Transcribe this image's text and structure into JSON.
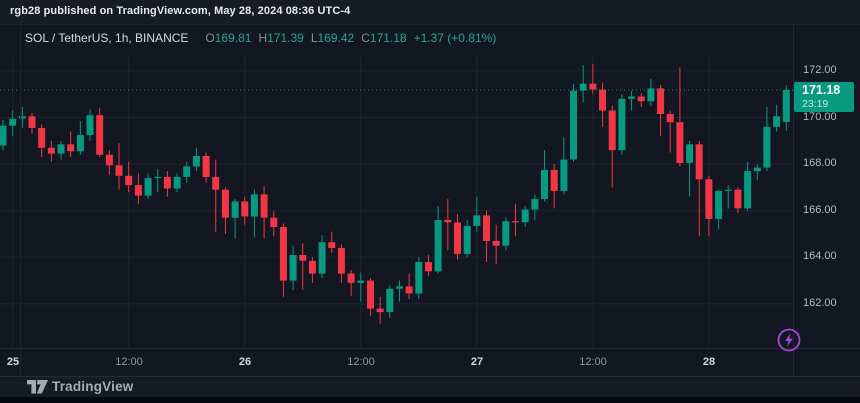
{
  "page": {
    "title": "rgb28 published on TradingView.com, May 28, 2024 08:36 UTC-4",
    "footer_logo_text": "TradingView"
  },
  "legend": {
    "symbol": "SOL / TetherUS, 1h, BINANCE",
    "ohlc": [
      {
        "label": "O",
        "value": "169.81"
      },
      {
        "label": "H",
        "value": "171.39"
      },
      {
        "label": "L",
        "value": "169.42"
      },
      {
        "label": "C",
        "value": "171.18"
      }
    ],
    "change": "+1.37 (+0.81%)"
  },
  "price_scale": {
    "current_price": "171.18",
    "current_price_value": 171.18,
    "countdown": "23:19",
    "labels": [
      {
        "text": "172.00",
        "price": 172
      },
      {
        "text": "170.00",
        "price": 170
      },
      {
        "text": "168.00",
        "price": 168
      },
      {
        "text": "166.00",
        "price": 166
      },
      {
        "text": "164.00",
        "price": 164
      },
      {
        "text": "162.00",
        "price": 162
      }
    ]
  },
  "time_scale": {
    "ticks": [
      {
        "label": "25",
        "index": 1,
        "day": true
      },
      {
        "label": "12:00",
        "index": 13,
        "day": false
      },
      {
        "label": "26",
        "index": 25,
        "day": true
      },
      {
        "label": "12:00",
        "index": 37,
        "day": false
      },
      {
        "label": "27",
        "index": 49,
        "day": true
      },
      {
        "label": "12:00",
        "index": 61,
        "day": false
      },
      {
        "label": "28",
        "index": 73,
        "day": true
      }
    ]
  },
  "colors": {
    "up": "#089981",
    "down": "#f23645",
    "badge_bg": "#089981",
    "grid": "#1e2431",
    "price_line": "#089981",
    "accent_purple": "#a746d8"
  },
  "chart_data": {
    "type": "candlestick",
    "symbol": "SOL / TetherUS",
    "exchange": "BINANCE",
    "interval": "1h",
    "start": "2024-05-24 23:00",
    "step_hours": 1,
    "ylim": [
      160.2,
      172.64
    ],
    "grid_prices": [
      172,
      170,
      168,
      166,
      164,
      162
    ],
    "candles_format": [
      "open",
      "high",
      "low",
      "close"
    ],
    "candles": [
      [
        168.8,
        169.9,
        168.6,
        169.65
      ],
      [
        169.65,
        170.3,
        169.2,
        169.95
      ],
      [
        169.95,
        170.45,
        169.55,
        170.05
      ],
      [
        170.05,
        170.2,
        169.3,
        169.55
      ],
      [
        169.55,
        169.7,
        168.3,
        168.7
      ],
      [
        168.7,
        169.0,
        168.1,
        168.45
      ],
      [
        168.45,
        169.0,
        168.2,
        168.85
      ],
      [
        168.85,
        169.4,
        168.3,
        168.55
      ],
      [
        168.55,
        169.85,
        168.4,
        169.25
      ],
      [
        169.25,
        170.35,
        169.0,
        170.1
      ],
      [
        170.1,
        170.4,
        168.3,
        168.4
      ],
      [
        168.4,
        168.6,
        167.55,
        167.95
      ],
      [
        167.95,
        168.9,
        166.9,
        167.5
      ],
      [
        167.5,
        168.1,
        166.8,
        167.1
      ],
      [
        167.1,
        167.6,
        166.3,
        166.65
      ],
      [
        166.65,
        167.6,
        166.5,
        167.4
      ],
      [
        167.4,
        167.8,
        166.8,
        167.45
      ],
      [
        167.45,
        167.7,
        166.6,
        166.95
      ],
      [
        166.95,
        167.6,
        166.8,
        167.45
      ],
      [
        167.45,
        168.1,
        167.2,
        167.9
      ],
      [
        167.9,
        168.7,
        167.7,
        168.35
      ],
      [
        168.35,
        168.5,
        167.2,
        167.45
      ],
      [
        167.45,
        168.2,
        165.1,
        166.9
      ],
      [
        166.9,
        167.0,
        165.0,
        165.7
      ],
      [
        165.7,
        166.5,
        164.8,
        166.4
      ],
      [
        166.4,
        166.6,
        165.4,
        165.75
      ],
      [
        165.75,
        166.9,
        164.85,
        166.7
      ],
      [
        166.7,
        167.05,
        164.8,
        165.7
      ],
      [
        165.7,
        166.0,
        164.9,
        165.3
      ],
      [
        165.3,
        165.45,
        162.3,
        163.0
      ],
      [
        163.0,
        164.5,
        162.6,
        164.1
      ],
      [
        164.1,
        164.6,
        162.6,
        163.85
      ],
      [
        163.85,
        164.0,
        162.9,
        163.3
      ],
      [
        163.3,
        164.95,
        163.1,
        164.65
      ],
      [
        164.65,
        165.1,
        164.2,
        164.4
      ],
      [
        164.4,
        164.55,
        162.9,
        163.3
      ],
      [
        163.3,
        163.45,
        162.35,
        162.9
      ],
      [
        162.9,
        163.35,
        162.1,
        163.0
      ],
      [
        163.0,
        163.1,
        161.5,
        161.8
      ],
      [
        161.8,
        162.3,
        161.15,
        161.65
      ],
      [
        161.65,
        162.8,
        161.4,
        162.65
      ],
      [
        162.65,
        163.0,
        162.1,
        162.75
      ],
      [
        162.75,
        163.3,
        162.2,
        162.45
      ],
      [
        162.45,
        164.0,
        162.2,
        163.8
      ],
      [
        163.8,
        164.1,
        163.2,
        163.4
      ],
      [
        163.4,
        166.2,
        163.3,
        165.6
      ],
      [
        165.6,
        166.5,
        164.3,
        165.5
      ],
      [
        165.5,
        165.85,
        163.9,
        164.15
      ],
      [
        164.15,
        165.6,
        164.0,
        165.35
      ],
      [
        165.35,
        166.6,
        165.1,
        165.8
      ],
      [
        165.8,
        166.0,
        163.8,
        164.7
      ],
      [
        164.7,
        165.4,
        163.7,
        164.5
      ],
      [
        164.5,
        165.7,
        164.3,
        165.55
      ],
      [
        165.55,
        166.3,
        164.9,
        165.5
      ],
      [
        165.5,
        166.2,
        165.3,
        166.05
      ],
      [
        166.05,
        166.7,
        165.6,
        166.5
      ],
      [
        166.5,
        168.6,
        166.4,
        167.75
      ],
      [
        167.75,
        168.0,
        166.1,
        166.85
      ],
      [
        166.85,
        169.15,
        166.7,
        168.2
      ],
      [
        168.2,
        171.45,
        168.1,
        171.15
      ],
      [
        171.15,
        172.25,
        170.65,
        171.45
      ],
      [
        171.45,
        172.3,
        171.0,
        171.2
      ],
      [
        171.2,
        171.5,
        169.6,
        170.3
      ],
      [
        170.3,
        170.5,
        167.0,
        168.6
      ],
      [
        168.6,
        171.0,
        168.4,
        170.8
      ],
      [
        170.8,
        171.15,
        170.3,
        170.9
      ],
      [
        170.9,
        171.05,
        170.45,
        170.7
      ],
      [
        170.7,
        171.65,
        170.5,
        171.25
      ],
      [
        171.25,
        171.4,
        169.2,
        170.15
      ],
      [
        170.15,
        170.3,
        168.5,
        169.8
      ],
      [
        169.8,
        172.15,
        167.9,
        168.05
      ],
      [
        168.05,
        169.0,
        166.6,
        168.85
      ],
      [
        168.85,
        169.0,
        164.9,
        167.35
      ],
      [
        167.35,
        167.5,
        164.9,
        165.65
      ],
      [
        165.65,
        166.9,
        165.2,
        166.85
      ],
      [
        166.85,
        167.1,
        166.1,
        166.9
      ],
      [
        166.9,
        167.0,
        165.9,
        166.1
      ],
      [
        166.1,
        168.1,
        166.0,
        167.7
      ],
      [
        167.7,
        168.0,
        167.3,
        167.85
      ],
      [
        167.85,
        170.45,
        167.7,
        169.6
      ],
      [
        169.6,
        170.55,
        169.4,
        170.05
      ],
      [
        169.81,
        171.39,
        169.42,
        171.18
      ]
    ]
  }
}
